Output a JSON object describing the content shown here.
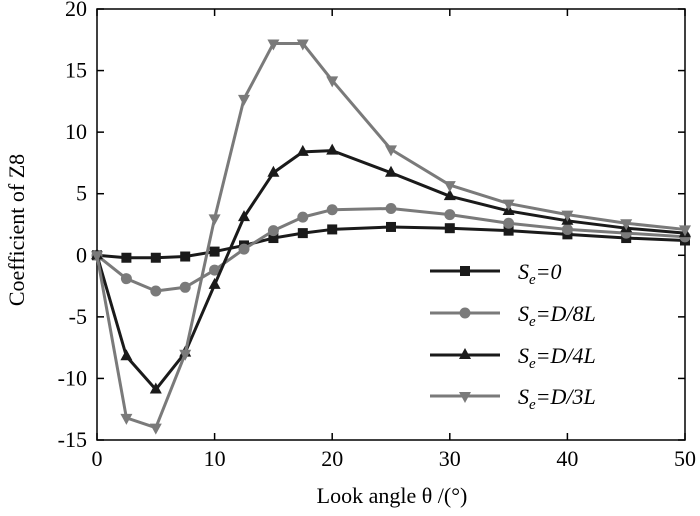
{
  "chart_data": {
    "type": "line",
    "title": "",
    "xlabel": "Look angle  θ /(°)",
    "ylabel": "Coefficient of Z8",
    "xlim": [
      0,
      50
    ],
    "ylim": [
      -15,
      20
    ],
    "xticks": [
      0,
      10,
      20,
      30,
      40,
      50
    ],
    "yticks": [
      -15,
      -10,
      -5,
      0,
      5,
      10,
      15,
      20
    ],
    "grid": false,
    "legend_position": "lower-right",
    "series": [
      {
        "name": "Se=0",
        "legend_main": "S",
        "legend_sub": "e",
        "legend_rest": "=0",
        "color": "#1a1a1a",
        "marker": "square",
        "x": [
          0,
          2.5,
          5,
          7.5,
          10,
          12.5,
          15,
          17.5,
          20,
          25,
          30,
          35,
          40,
          45,
          50
        ],
        "y": [
          0,
          -0.2,
          -0.2,
          -0.1,
          0.3,
          0.8,
          1.4,
          1.8,
          2.1,
          2.3,
          2.2,
          2.0,
          1.7,
          1.4,
          1.2
        ]
      },
      {
        "name": "Se=D/8L",
        "legend_main": "S",
        "legend_sub": "e",
        "legend_rest": "=D/8L",
        "color": "#7a7a7a",
        "marker": "circle",
        "x": [
          0,
          2.5,
          5,
          7.5,
          10,
          12.5,
          15,
          17.5,
          20,
          25,
          30,
          35,
          40,
          45,
          50
        ],
        "y": [
          0,
          -1.9,
          -2.9,
          -2.6,
          -1.2,
          0.5,
          2.0,
          3.1,
          3.7,
          3.8,
          3.3,
          2.6,
          2.1,
          1.8,
          1.5
        ]
      },
      {
        "name": "Se=D/4L",
        "legend_main": "S",
        "legend_sub": "e",
        "legend_rest": "=D/4L",
        "color": "#1a1a1a",
        "marker": "triangle-up",
        "x": [
          0,
          2.5,
          5,
          7.5,
          10,
          12.5,
          15,
          17.5,
          20,
          25,
          30,
          35,
          40,
          45,
          50
        ],
        "y": [
          0,
          -8.2,
          -10.9,
          -7.9,
          -2.4,
          3.1,
          6.7,
          8.4,
          8.5,
          6.7,
          4.8,
          3.6,
          2.8,
          2.2,
          1.8
        ]
      },
      {
        "name": "Se=D/3L",
        "legend_main": "S",
        "legend_sub": "e",
        "legend_rest": "=D/3L",
        "color": "#7a7a7a",
        "marker": "triangle-down",
        "x": [
          0,
          2.5,
          5,
          7.5,
          10,
          12.5,
          15,
          17.5,
          20,
          25,
          30,
          35,
          40,
          45,
          50
        ],
        "y": [
          0,
          -13.2,
          -14.0,
          -8.0,
          3.0,
          12.7,
          17.2,
          17.2,
          14.2,
          8.6,
          5.7,
          4.2,
          3.3,
          2.6,
          2.1
        ]
      }
    ]
  }
}
